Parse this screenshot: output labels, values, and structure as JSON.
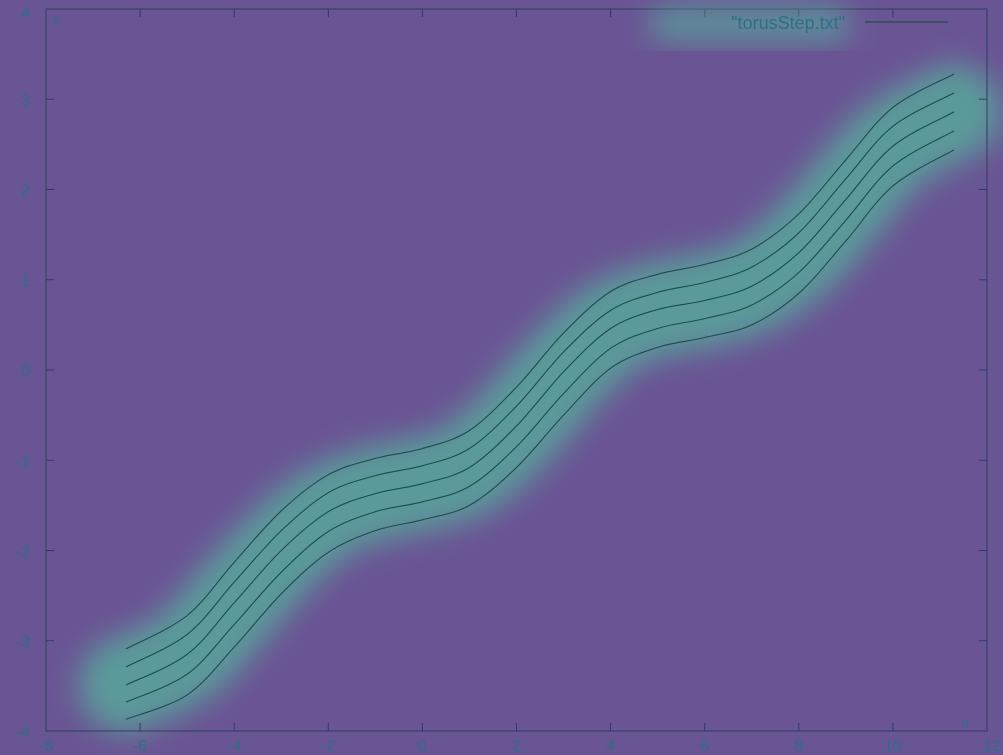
{
  "chart_data": {
    "type": "line",
    "title": "",
    "xlabel": "u",
    "ylabel": "v",
    "xlim": [
      -8,
      12
    ],
    "ylim": [
      -4,
      4
    ],
    "xticks": [
      -8,
      -6,
      -4,
      -2,
      0,
      2,
      4,
      6,
      8,
      10,
      12
    ],
    "yticks": [
      -4,
      -3,
      -2,
      -1,
      0,
      1,
      2,
      3,
      4
    ],
    "xtick_labels": [
      "-8",
      "-6",
      "-4",
      "-2",
      "0",
      "2",
      "4",
      "6",
      "8",
      "10",
      "12"
    ],
    "ytick_labels": [
      "-4",
      "-3",
      "-2",
      "-1",
      "0",
      "1",
      "2",
      "3",
      "4"
    ],
    "grid": false,
    "legend": {
      "position": "top-right",
      "entries": [
        "\"torusStep.txt\""
      ]
    },
    "series": [
      {
        "name": "\"torusStep.txt\"",
        "curves": [
          {
            "x": [
              -6.3,
              -5.0,
              -4.0,
              -3.0,
              -2.0,
              -1.0,
              0.0,
              1.0,
              2.0,
              3.0,
              4.0,
              5.0,
              6.0,
              7.0,
              8.0,
              9.0,
              10.0,
              11.3
            ],
            "y": [
              -3.09,
              -2.72,
              -2.13,
              -1.56,
              -1.16,
              -0.98,
              -0.87,
              -0.67,
              -0.19,
              0.41,
              0.87,
              1.06,
              1.17,
              1.34,
              1.73,
              2.33,
              2.91,
              3.28
            ]
          },
          {
            "x": [
              -6.3,
              -5.0,
              -4.0,
              -3.0,
              -2.0,
              -1.0,
              0.0,
              1.0,
              2.0,
              3.0,
              4.0,
              5.0,
              6.0,
              7.0,
              8.0,
              9.0,
              10.0,
              11.3
            ],
            "y": [
              -3.29,
              -2.93,
              -2.35,
              -1.78,
              -1.36,
              -1.17,
              -1.06,
              -0.87,
              -0.4,
              0.2,
              0.66,
              0.86,
              0.97,
              1.14,
              1.52,
              2.12,
              2.7,
              3.07
            ]
          },
          {
            "x": [
              -6.3,
              -5.0,
              -4.0,
              -3.0,
              -2.0,
              -1.0,
              0.0,
              1.0,
              2.0,
              3.0,
              4.0,
              5.0,
              6.0,
              7.0,
              8.0,
              9.0,
              10.0,
              11.3
            ],
            "y": [
              -3.49,
              -3.15,
              -2.58,
              -2.0,
              -1.57,
              -1.37,
              -1.26,
              -1.08,
              -0.62,
              -0.02,
              0.46,
              0.67,
              0.77,
              0.93,
              1.3,
              1.89,
              2.48,
              2.86
            ]
          },
          {
            "x": [
              -6.3,
              -5.0,
              -4.0,
              -3.0,
              -2.0,
              -1.0,
              0.0,
              1.0,
              2.0,
              3.0,
              4.0,
              5.0,
              6.0,
              7.0,
              8.0,
              9.0,
              10.0,
              11.3
            ],
            "y": [
              -3.68,
              -3.37,
              -2.82,
              -2.24,
              -1.79,
              -1.57,
              -1.46,
              -1.29,
              -0.85,
              -0.26,
              0.24,
              0.46,
              0.57,
              0.72,
              1.08,
              1.66,
              2.26,
              2.65
            ]
          },
          {
            "x": [
              -6.3,
              -5.0,
              -4.0,
              -3.0,
              -2.0,
              -1.0,
              0.0,
              1.0,
              2.0,
              3.0,
              4.0,
              5.0,
              6.0,
              7.0,
              8.0,
              9.0,
              10.0,
              11.3
            ],
            "y": [
              -3.87,
              -3.6,
              -3.07,
              -2.48,
              -2.02,
              -1.78,
              -1.66,
              -1.5,
              -1.08,
              -0.5,
              0.02,
              0.25,
              0.36,
              0.5,
              0.85,
              1.43,
              2.04,
              2.44
            ]
          }
        ]
      }
    ],
    "colors": {
      "background": "#6a5594",
      "line": "#1d4d4a",
      "glow": "#4fd1a0",
      "text": "#2c6f86",
      "axis": "#2c3e5a"
    }
  }
}
